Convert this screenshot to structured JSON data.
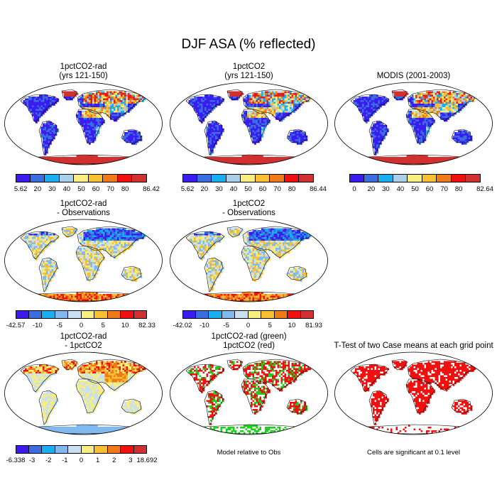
{
  "title": "DJF ASA (% reflected)",
  "panels": [
    {
      "id": "p1",
      "title1": "1pctCO2-rad",
      "title2": "(yrs 121-150)",
      "type": "abs",
      "colorbar": {
        "colors": [
          "#3a1cf0",
          "#3a6ee0",
          "#19aef0",
          "#a8d0e8",
          "#f8ee80",
          "#f8c030",
          "#f07a18",
          "#f01010",
          "#d03030"
        ],
        "ticks": [
          "5.62",
          "20",
          "30",
          "40",
          "50",
          "60",
          "70",
          "80",
          "86.42"
        ]
      }
    },
    {
      "id": "p2",
      "title1": "1pctCO2",
      "title2": "(yrs 121-150)",
      "type": "abs",
      "colorbar": {
        "colors": [
          "#3a1cf0",
          "#3a6ee0",
          "#19aef0",
          "#a8d0e8",
          "#f8ee80",
          "#f8c030",
          "#f07a18",
          "#f01010",
          "#d03030"
        ],
        "ticks": [
          "5.62",
          "20",
          "30",
          "40",
          "50",
          "60",
          "70",
          "80",
          "86.44"
        ]
      }
    },
    {
      "id": "p3",
      "title1": "",
      "title2": "MODIS (2001-2003)",
      "type": "abs",
      "colorbar": {
        "colors": [
          "#3a1cf0",
          "#3a6ee0",
          "#19aef0",
          "#a8d0e8",
          "#f8ee80",
          "#f8c030",
          "#f07a18",
          "#f01010",
          "#d03030"
        ],
        "ticks": [
          "0",
          "20",
          "30",
          "40",
          "50",
          "60",
          "70",
          "80",
          "82.64"
        ]
      }
    },
    {
      "id": "p4",
      "title1": "1pctCO2-rad",
      "title2": "- Observations",
      "type": "diff",
      "colorbar": {
        "colors": [
          "#3a1cf0",
          "#3a6ee0",
          "#19aef0",
          "#80b8f0",
          "#c8e0f0",
          "#f8ee80",
          "#f8c030",
          "#f07a18",
          "#f01010",
          "#d03030"
        ],
        "ticks": [
          "-42.57",
          "-10",
          "-5",
          "0",
          "5",
          "10",
          "82.33"
        ]
      }
    },
    {
      "id": "p5",
      "title1": "1pctCO2",
      "title2": "- Observations",
      "type": "diff",
      "colorbar": {
        "colors": [
          "#3a1cf0",
          "#3a6ee0",
          "#19aef0",
          "#80b8f0",
          "#c8e0f0",
          "#f8ee80",
          "#f8c030",
          "#f07a18",
          "#f01010",
          "#d03030"
        ],
        "ticks": [
          "-42.02",
          "-10",
          "-5",
          "0",
          "5",
          "10",
          "81.93"
        ]
      }
    },
    {
      "id": "p7",
      "title1": "1pctCO2-rad",
      "title2": "- 1pctCO2",
      "type": "diff2",
      "colorbar": {
        "colors": [
          "#3a1cf0",
          "#3a6ee0",
          "#19aef0",
          "#80b8f0",
          "#c8e0f0",
          "#f8ee80",
          "#f8c030",
          "#f07a18",
          "#f01010",
          "#d03030"
        ],
        "ticks": [
          "-6.338",
          "-3",
          "-2",
          "-1",
          "0",
          "1",
          "2",
          "3",
          "18.692"
        ]
      }
    },
    {
      "id": "p8",
      "title1": "1pctCO2-rad (green)",
      "title2": "1pctCO2 (red)",
      "type": "rg",
      "note": "Model relative to Obs"
    },
    {
      "id": "p9",
      "title1": "",
      "title2": "T-Test of two Case means at each grid point",
      "type": "tt",
      "note": "Cells are significant at 0.1 level"
    }
  ]
}
